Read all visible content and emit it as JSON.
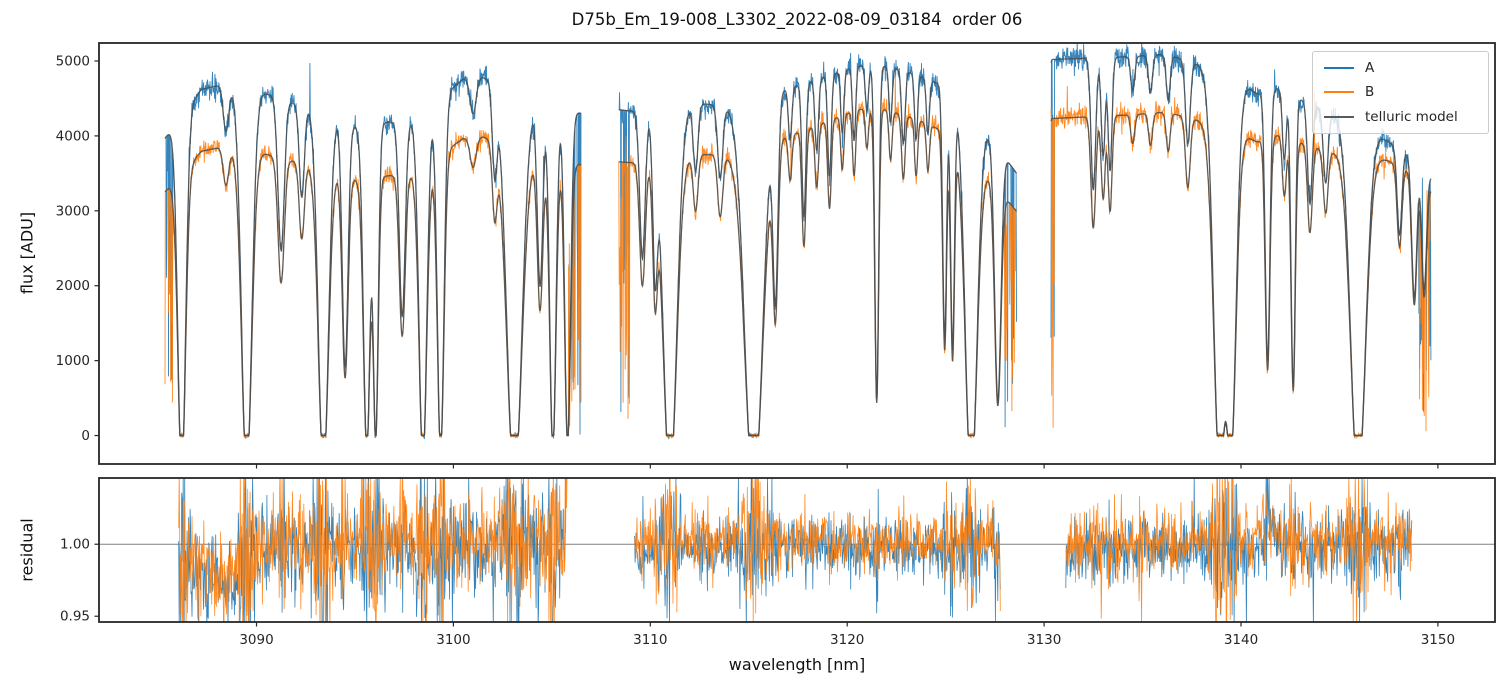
{
  "chart_data": {
    "type": "line",
    "title": "D75b_Em_19-008_L3302_2022-08-09_03184  order 06",
    "xlabel": "wavelength [nm]",
    "xlim": [
      3082.0,
      3152.9
    ],
    "xticks": [
      {
        "v": 3090,
        "label": "3090"
      },
      {
        "v": 3100,
        "label": "3100"
      },
      {
        "v": 3110,
        "label": "3110"
      },
      {
        "v": 3120,
        "label": "3120"
      },
      {
        "v": 3130,
        "label": "3130"
      },
      {
        "v": 3140,
        "label": "3140"
      },
      {
        "v": 3150,
        "label": "3150"
      }
    ],
    "legend": [
      {
        "label": "A",
        "color": "#1f77b4"
      },
      {
        "label": "B",
        "color": "#ff7f0e"
      },
      {
        "label": "telluric model",
        "color": "#595959"
      }
    ],
    "panels": [
      {
        "name": "flux",
        "ylabel": "flux [ADU]",
        "ylim": [
          -380,
          5240
        ],
        "yticks": [
          {
            "v": 0,
            "label": "0"
          },
          {
            "v": 1000,
            "label": "1000"
          },
          {
            "v": 2000,
            "label": "2000"
          },
          {
            "v": 3000,
            "label": "3000"
          },
          {
            "v": 4000,
            "label": "4000"
          },
          {
            "v": 5000,
            "label": "5000"
          }
        ]
      },
      {
        "name": "residual",
        "ylabel": "residual",
        "ylim": [
          0.946,
          1.046
        ],
        "yticks": [
          {
            "v": 0.95,
            "label": "0.95"
          },
          {
            "v": 1.0,
            "label": "1.00"
          }
        ],
        "hline": 1.0,
        "hline_color": "#808080"
      }
    ],
    "series": [
      {
        "name": "A",
        "color": "#1f77b4",
        "role": "spectrum"
      },
      {
        "name": "B",
        "color": "#ff7f0e",
        "role": "spectrum"
      },
      {
        "name": "telluric model",
        "color": "#4d4d4d",
        "role": "model"
      }
    ],
    "segments": [
      [
        3085.35,
        3106.5
      ],
      [
        3108.4,
        3128.6
      ],
      [
        3130.35,
        3149.65
      ]
    ],
    "continuum_A": [
      [
        3085.3,
        3950
      ],
      [
        3087.2,
        4620
      ],
      [
        3088.2,
        4680
      ],
      [
        3090.5,
        4560
      ],
      [
        3092.0,
        4430
      ],
      [
        3093.8,
        4340
      ],
      [
        3095.2,
        4100
      ],
      [
        3096.6,
        4180
      ],
      [
        3098.0,
        4220
      ],
      [
        3100.5,
        4760
      ],
      [
        3101.5,
        4780
      ],
      [
        3103.0,
        4600
      ],
      [
        3104.5,
        4420
      ],
      [
        3106.5,
        4300
      ],
      [
        3108.4,
        4350
      ],
      [
        3110.0,
        4300
      ],
      [
        3112.5,
        4430
      ],
      [
        3114.0,
        4400
      ],
      [
        3116.5,
        4600
      ],
      [
        3118.5,
        4760
      ],
      [
        3120.5,
        4930
      ],
      [
        3122.0,
        4930
      ],
      [
        3123.5,
        4820
      ],
      [
        3125.0,
        4650
      ],
      [
        3126.5,
        4350
      ],
      [
        3127.5,
        3900
      ],
      [
        3128.6,
        3500
      ],
      [
        3130.4,
        5020
      ],
      [
        3132.5,
        5040
      ],
      [
        3134.5,
        5060
      ],
      [
        3136.2,
        5090
      ],
      [
        3137.5,
        4980
      ],
      [
        3139.5,
        4800
      ],
      [
        3140.8,
        4560
      ],
      [
        3142.0,
        4640
      ],
      [
        3143.2,
        4460
      ],
      [
        3144.5,
        4300
      ],
      [
        3146.0,
        4200
      ],
      [
        3147.6,
        3900
      ],
      [
        3148.6,
        3750
      ],
      [
        3149.65,
        3450
      ]
    ],
    "ratio_B_over_A": [
      [
        3085.3,
        0.82
      ],
      [
        3092.0,
        0.825
      ],
      [
        3098.0,
        0.83
      ],
      [
        3103.0,
        0.836
      ],
      [
        3106.5,
        0.84
      ],
      [
        3108.4,
        0.84
      ],
      [
        3113.0,
        0.848
      ],
      [
        3117.0,
        0.862
      ],
      [
        3121.0,
        0.885
      ],
      [
        3124.0,
        0.875
      ],
      [
        3126.5,
        0.862
      ],
      [
        3128.6,
        0.855
      ],
      [
        3130.4,
        0.843
      ],
      [
        3134.0,
        0.846
      ],
      [
        3138.0,
        0.85
      ],
      [
        3140.5,
        0.858
      ],
      [
        3142.5,
        0.868
      ],
      [
        3145.0,
        0.885
      ],
      [
        3147.5,
        0.935
      ],
      [
        3149.65,
        0.95
      ]
    ],
    "telluric_lines": [
      [
        3086.2,
        1.12,
        0.2
      ],
      [
        3088.45,
        0.13,
        0.14
      ],
      [
        3089.5,
        1.12,
        0.26
      ],
      [
        3091.25,
        0.45,
        0.16
      ],
      [
        3092.3,
        0.28,
        0.13
      ],
      [
        3093.4,
        1.12,
        0.26
      ],
      [
        3094.5,
        0.78,
        0.15
      ],
      [
        3095.6,
        1.05,
        0.17
      ],
      [
        3096.05,
        1.02,
        0.13
      ],
      [
        3097.4,
        0.62,
        0.15
      ],
      [
        3098.45,
        1.08,
        0.2
      ],
      [
        3099.35,
        1.05,
        0.17
      ],
      [
        3101.0,
        0.1,
        0.15
      ],
      [
        3102.1,
        0.25,
        0.12
      ],
      [
        3103.1,
        1.15,
        0.38
      ],
      [
        3104.4,
        0.55,
        0.14
      ],
      [
        3105.05,
        1.05,
        0.16
      ],
      [
        3105.8,
        1.02,
        0.15
      ],
      [
        3109.6,
        0.45,
        0.14
      ],
      [
        3110.25,
        0.5,
        0.12
      ],
      [
        3111.0,
        1.15,
        0.34
      ],
      [
        3112.3,
        0.2,
        0.12
      ],
      [
        3113.55,
        0.22,
        0.13
      ],
      [
        3115.25,
        1.18,
        0.45
      ],
      [
        3116.35,
        0.6,
        0.13
      ],
      [
        3117.1,
        0.15,
        0.09
      ],
      [
        3117.8,
        0.38,
        0.1
      ],
      [
        3118.45,
        0.2,
        0.09
      ],
      [
        3119.1,
        0.28,
        0.09
      ],
      [
        3119.75,
        0.17,
        0.08
      ],
      [
        3120.35,
        0.2,
        0.08
      ],
      [
        3121.0,
        0.12,
        0.08
      ],
      [
        3121.5,
        0.9,
        0.1
      ],
      [
        3122.2,
        0.15,
        0.08
      ],
      [
        3122.85,
        0.2,
        0.09
      ],
      [
        3123.5,
        0.18,
        0.08
      ],
      [
        3124.1,
        0.15,
        0.08
      ],
      [
        3124.95,
        0.72,
        0.1
      ],
      [
        3125.35,
        0.75,
        0.1
      ],
      [
        3126.3,
        1.15,
        0.3
      ],
      [
        3127.65,
        0.88,
        0.16
      ],
      [
        3132.5,
        0.35,
        0.12
      ],
      [
        3133.0,
        0.26,
        0.1
      ],
      [
        3133.35,
        0.3,
        0.1
      ],
      [
        3134.5,
        0.09,
        0.1
      ],
      [
        3135.4,
        0.1,
        0.1
      ],
      [
        3136.3,
        0.12,
        0.1
      ],
      [
        3137.3,
        0.22,
        0.12
      ],
      [
        3138.95,
        1.15,
        0.32
      ],
      [
        3139.45,
        1.12,
        0.28
      ],
      [
        3141.35,
        0.78,
        0.12
      ],
      [
        3142.2,
        0.2,
        0.1
      ],
      [
        3142.65,
        0.85,
        0.11
      ],
      [
        3143.5,
        0.3,
        0.12
      ],
      [
        3144.3,
        0.22,
        0.12
      ],
      [
        3145.95,
        1.15,
        0.38
      ],
      [
        3148.05,
        0.3,
        0.12
      ],
      [
        3148.8,
        0.5,
        0.13
      ],
      [
        3149.3,
        0.45,
        0.12
      ]
    ],
    "noise": {
      "base_sigma_adu": 16,
      "flux_fraction": 0.013,
      "spike_prob": 0.005,
      "spike_scale": 7
    },
    "edge_spike_zones": [
      [
        3085.35,
        3085.8,
        4000
      ],
      [
        3105.85,
        3106.5,
        3000
      ],
      [
        3108.4,
        3108.95,
        4600
      ],
      [
        3128.0,
        3128.6,
        3400
      ],
      [
        3130.35,
        3130.6,
        5050
      ],
      [
        3149.0,
        3149.65,
        3700
      ]
    ],
    "residual": {
      "segments": [
        [
          3086.05,
          3105.8
        ],
        [
          3109.2,
          3127.8
        ],
        [
          3131.1,
          3148.7
        ]
      ],
      "sigma": [
        0.016,
        0.01,
        0.012
      ],
      "features": [
        {
          "center": 3088.3,
          "amp": -0.025,
          "width": 1.0
        },
        {
          "center": 3141.3,
          "amp": 0.015,
          "width": 0.3
        }
      ]
    }
  }
}
